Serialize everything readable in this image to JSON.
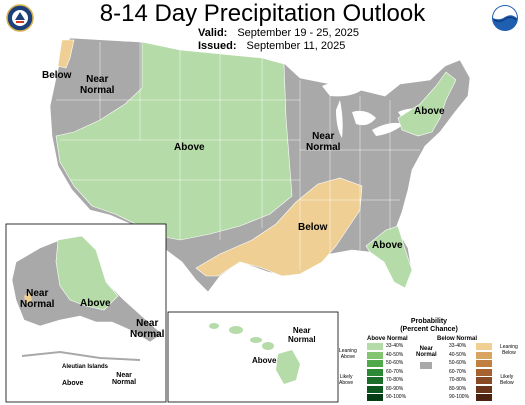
{
  "header": {
    "title": "8-14 Day Precipitation Outlook",
    "valid_label": "Valid:",
    "valid_dates": "September 19 - 25, 2025",
    "issued_label": "Issued:",
    "issued_date": "September 11, 2025"
  },
  "logos": {
    "left": "noaa-doc-seal-icon",
    "right": "noaa-logo-icon"
  },
  "colors": {
    "near_normal": "#a9a9a9",
    "above_light": "#b5dca8",
    "below_light": "#efcf93",
    "background": "#ffffff"
  },
  "map_labels": {
    "below_nw": "Below",
    "near_normal_nw": "Near\nNormal",
    "above_central": "Above",
    "near_normal_east": "Near\nNormal",
    "above_northeast": "Above",
    "below_south": "Below",
    "above_southeast": "Above"
  },
  "alaska": {
    "near_normal": "Near\nNormal",
    "above": "Above",
    "near_normal_se": "Near\nNormal",
    "aleutian_title": "Aleutian Islands",
    "aleutian_above": "Above",
    "aleutian_near_normal": "Near\nNormal"
  },
  "hawaii": {
    "near_normal": "Near\nNormal",
    "above": "Above"
  },
  "legend": {
    "title": "Probability\n(Percent Chance)",
    "above_header": "Above Normal",
    "below_header": "Below Normal",
    "near_header": "Near\nNormal",
    "leaning_above": "Leaning\nAbove",
    "likely_above": "Likely\nAbove",
    "leaning_below": "Leaning\nBelow",
    "likely_below": "Likely\nBelow",
    "ranges": [
      "33-40%",
      "40-50%",
      "50-60%",
      "60-70%",
      "70-80%",
      "80-90%",
      "90-100%"
    ],
    "above_colors": [
      "#b5dca8",
      "#82c46f",
      "#4fa84a",
      "#2c8a36",
      "#1a6e2a",
      "#0c5620",
      "#053d16"
    ],
    "below_colors": [
      "#efcf93",
      "#d9a461",
      "#c08040",
      "#a56230",
      "#874a24",
      "#6a361a",
      "#4a2410"
    ]
  }
}
